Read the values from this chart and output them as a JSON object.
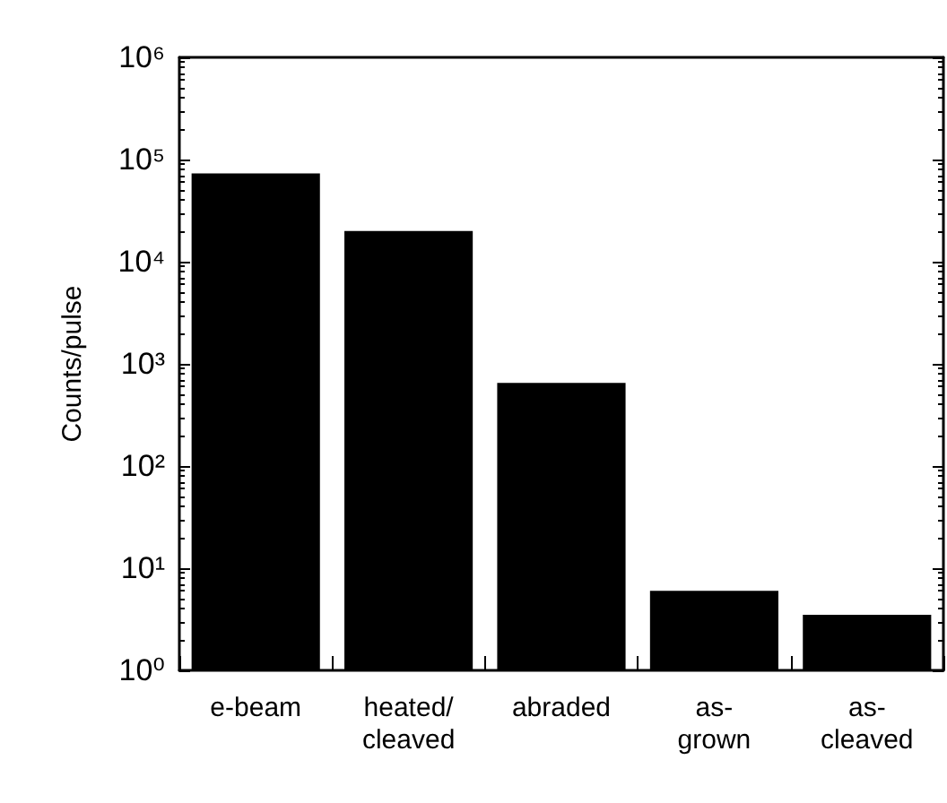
{
  "chart_data": {
    "type": "bar",
    "ylabel": "Counts/pulse",
    "categories": [
      "e-beam",
      "heated/ cleaved",
      "abraded",
      "as- grown",
      "as- cleaved"
    ],
    "values": [
      73000,
      20000,
      650,
      6,
      3.5
    ],
    "color": "#000000",
    "log": "y",
    "ylim": [
      1,
      1000000
    ],
    "yticks": [
      {
        "value": 1,
        "label": "10⁰"
      },
      {
        "value": 10,
        "label": "10¹"
      },
      {
        "value": 100,
        "label": "10²"
      },
      {
        "value": 1000,
        "label": "10³"
      },
      {
        "value": 10000,
        "label": "10⁴"
      },
      {
        "value": 100000,
        "label": "10⁵"
      },
      {
        "value": 1000000,
        "label": "10⁶"
      }
    ],
    "grid": false
  }
}
